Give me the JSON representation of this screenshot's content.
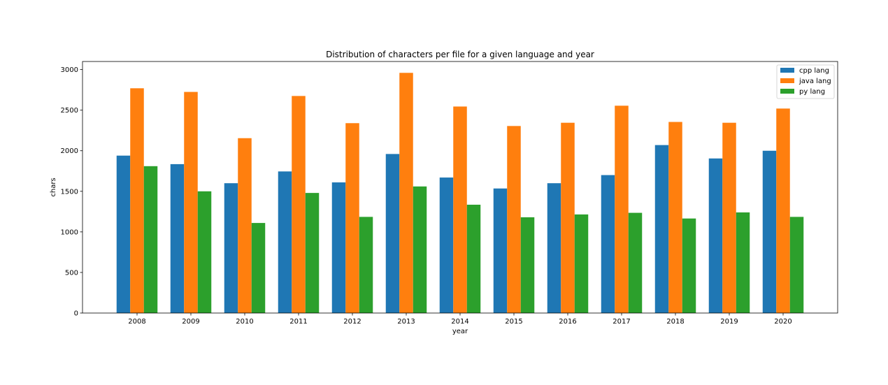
{
  "chart_data": {
    "type": "bar",
    "title": "Distribution of characters per file for a given language and year",
    "xlabel": "year",
    "ylabel": "chars",
    "categories": [
      "2008",
      "2009",
      "2010",
      "2011",
      "2012",
      "2013",
      "2014",
      "2015",
      "2016",
      "2017",
      "2018",
      "2019",
      "2020"
    ],
    "series": [
      {
        "name": "cpp lang",
        "color": "#1f77b4",
        "values": [
          1940,
          1835,
          1600,
          1745,
          1610,
          1960,
          1670,
          1535,
          1600,
          1700,
          2070,
          1905,
          2000
        ]
      },
      {
        "name": "java lang",
        "color": "#ff7f0e",
        "values": [
          2770,
          2725,
          2155,
          2675,
          2340,
          2960,
          2545,
          2305,
          2345,
          2555,
          2355,
          2345,
          2520
        ]
      },
      {
        "name": "py lang",
        "color": "#2ca02c",
        "values": [
          1810,
          1500,
          1110,
          1480,
          1185,
          1560,
          1335,
          1180,
          1215,
          1235,
          1165,
          1240,
          1185
        ]
      }
    ],
    "ylim": [
      0,
      3100
    ],
    "yticks": [
      0,
      500,
      1000,
      1500,
      2000,
      2500,
      3000
    ],
    "grid": false,
    "legend_position": "top-right"
  }
}
